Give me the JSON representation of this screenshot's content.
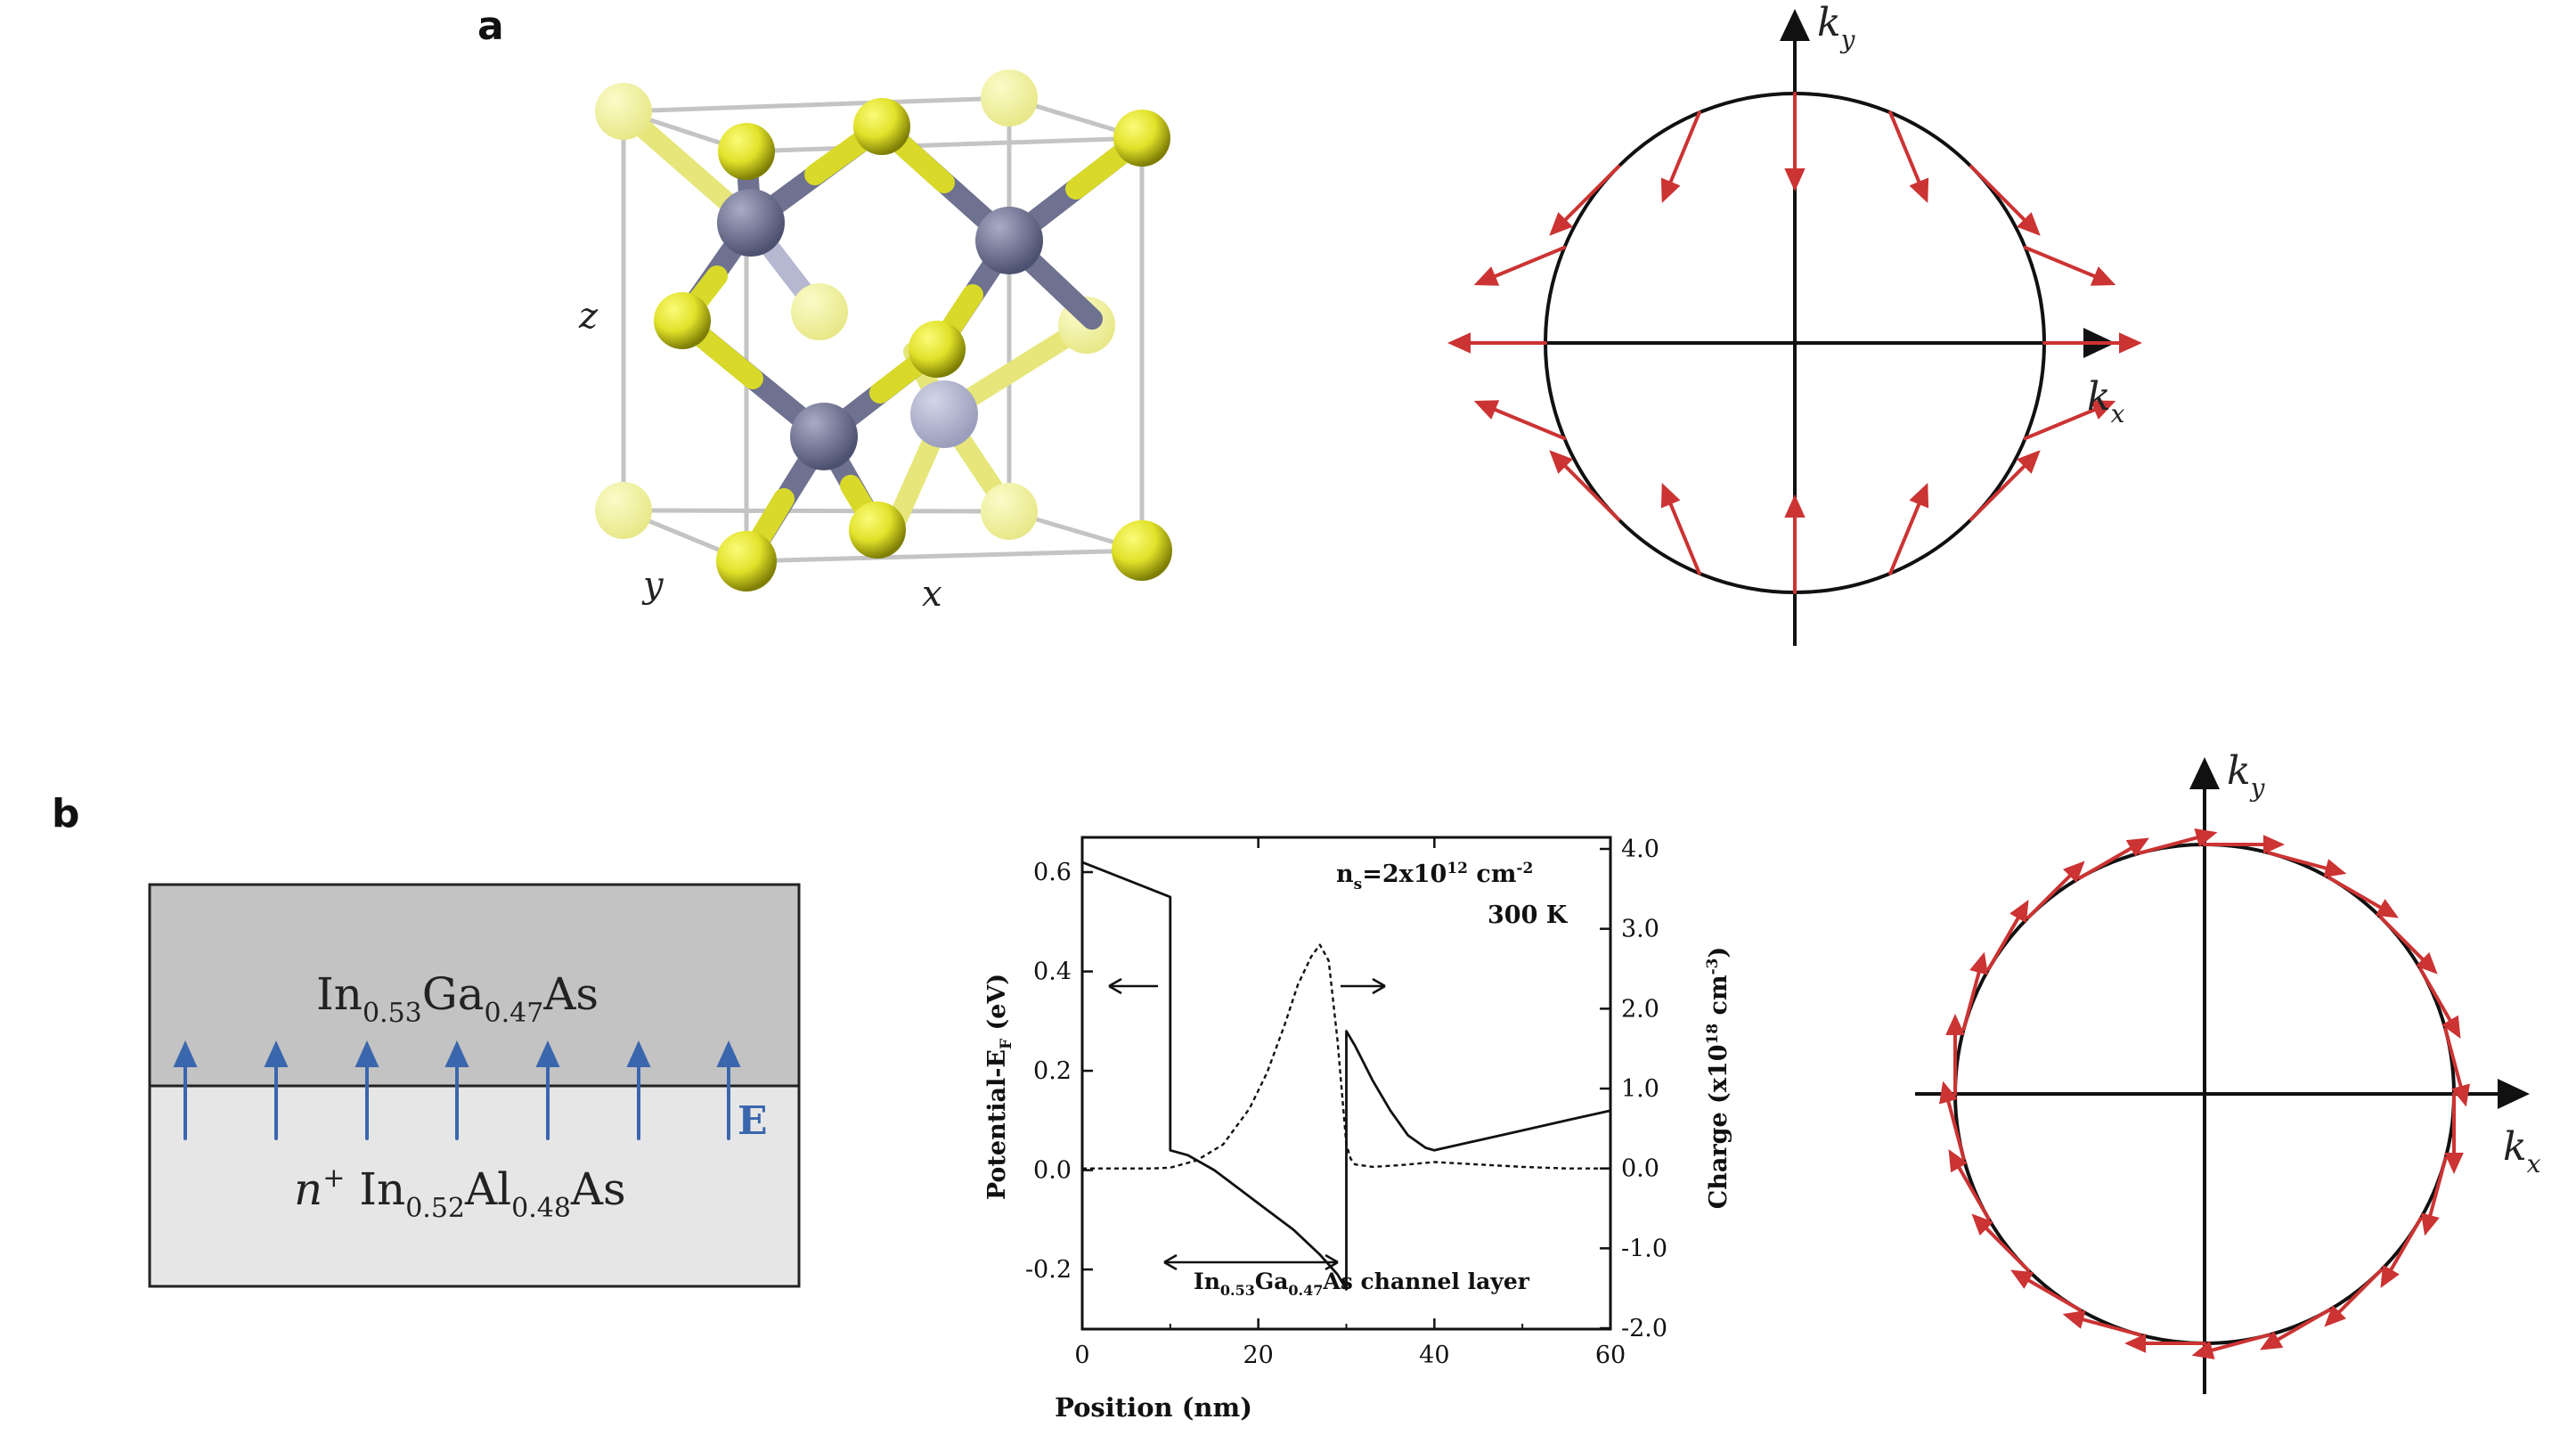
{
  "panels": {
    "a": "a",
    "b": "b"
  },
  "crystal": {
    "axis_z": "z",
    "axis_y": "y",
    "axis_x": "x"
  },
  "spin_texture_a": {
    "kx": "k",
    "kx_sub": "x",
    "ky": "k",
    "ky_sub": "y"
  },
  "spin_texture_b": {
    "kx": "k",
    "kx_sub": "x",
    "ky": "k",
    "ky_sub": "y"
  },
  "heterostructure": {
    "top": {
      "p1": "In",
      "s1": "0.53",
      "p2": "Ga",
      "s2": "0.47",
      "p3": "As"
    },
    "bottom": {
      "n": "n",
      "sup": "+",
      "p1": " In",
      "s1": "0.52",
      "p2": "Al",
      "s2": "0.48",
      "p3": "As"
    },
    "field": "E",
    "colors": {
      "top": "#c3c3c3",
      "bottom": "#e6e6e6",
      "arrow": "#3a66ad"
    }
  },
  "band_plot": {
    "ylabel_left": {
      "main": "Potential-E",
      "sub": "F",
      "unit": " (eV)"
    },
    "ylabel_right": {
      "a": "Charge (x10",
      "b": "18",
      "c": " cm",
      "d": "-3",
      "e": ")"
    },
    "xlabel": "Position (nm)",
    "note_line1": {
      "a": "n",
      "b": "s",
      "c": "=2x10",
      "d": "12",
      "e": " cm",
      "f": "-2"
    },
    "note_line2": "300 K",
    "channel": {
      "p1": "In",
      "s1": "0.53",
      "p2": "Ga",
      "s2": "0.47",
      "p3": "As channel layer"
    },
    "x_ticks": [
      "0",
      "20",
      "40",
      "60"
    ],
    "y_left_ticks": [
      "-0.2",
      "0.0",
      "0.2",
      "0.4",
      "0.6"
    ],
    "y_right_ticks": [
      "-2.0",
      "-1.0",
      "0.0",
      "1.0",
      "2.0",
      "3.0",
      "4.0"
    ]
  },
  "chart_data": {
    "type": "line",
    "xlabel": "Position (nm)",
    "ylabel": "Potential-E_F (eV)",
    "y2label": "Charge (x10^18 cm^-3)",
    "xlim": [
      0,
      60
    ],
    "ylim": [
      -0.32,
      0.67
    ],
    "y2lim": [
      -2.0,
      4.0
    ],
    "series": [
      {
        "axis": "left",
        "style": "solid",
        "x": [
          0,
          10,
          10,
          12,
          15,
          18,
          21,
          24,
          27,
          29,
          30,
          30,
          31,
          33,
          35,
          37,
          39,
          40,
          45,
          50,
          55,
          60
        ],
        "y": [
          0.62,
          0.55,
          0.04,
          0.03,
          0.0,
          -0.04,
          -0.08,
          -0.12,
          -0.17,
          -0.21,
          -0.24,
          0.28,
          0.25,
          0.18,
          0.12,
          0.07,
          0.045,
          0.04,
          0.06,
          0.08,
          0.1,
          0.12
        ]
      },
      {
        "axis": "right",
        "style": "dotted",
        "x": [
          0,
          8,
          10,
          13,
          16,
          19,
          21,
          23,
          24.5,
          26,
          27,
          28,
          29,
          30,
          30.5,
          31,
          33,
          36,
          40,
          45,
          50,
          55,
          60
        ],
        "y": [
          0.0,
          0.0,
          0.01,
          0.1,
          0.3,
          0.75,
          1.2,
          1.8,
          2.3,
          2.65,
          2.8,
          2.6,
          1.6,
          0.3,
          0.12,
          0.05,
          0.02,
          0.04,
          0.08,
          0.05,
          0.02,
          0.0,
          0.0
        ]
      }
    ]
  }
}
